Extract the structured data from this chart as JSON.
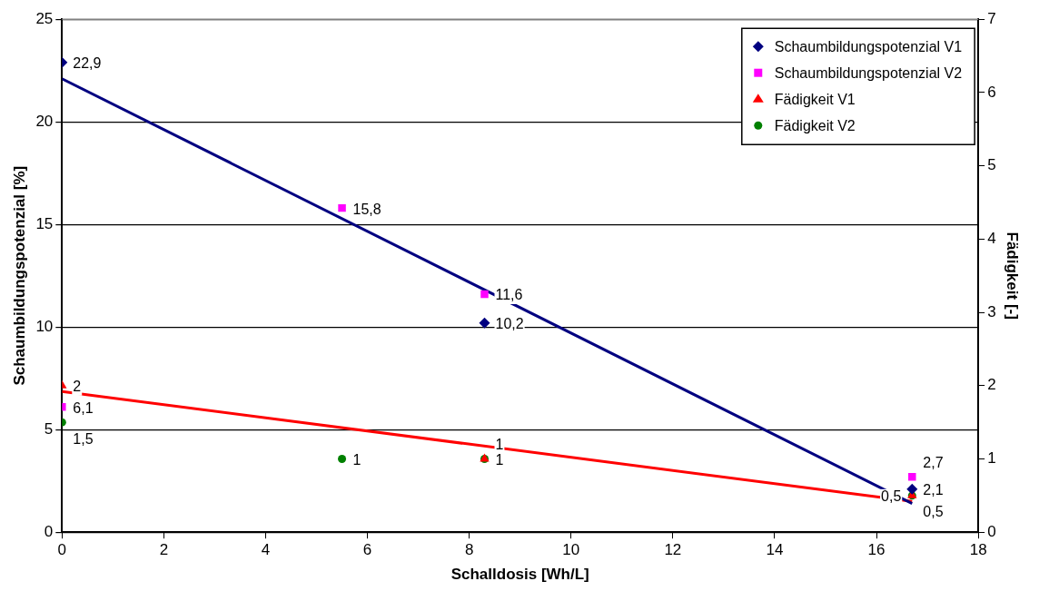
{
  "chart_data": {
    "type": "scatter",
    "xlabel": "Schalldosis [Wh/L]",
    "ylabel": "Schaumbildungspotenzial [%]",
    "y2label": "Fädigkeit [-]",
    "xlim": [
      0,
      18
    ],
    "xticks": [
      0,
      2,
      4,
      6,
      8,
      10,
      12,
      14,
      16,
      18
    ],
    "ylim": [
      0,
      25
    ],
    "yticks": [
      0,
      5,
      10,
      15,
      20,
      25
    ],
    "y2lim": [
      0,
      7
    ],
    "y2ticks": [
      0,
      1,
      2,
      3,
      4,
      5,
      6,
      7
    ],
    "grid": "y",
    "legend": "top right",
    "series": [
      {
        "name": "Schaumbildungspotenzial V1",
        "color": "#000080",
        "marker": "diamond",
        "x": [
          0,
          8.3,
          16.7
        ],
        "values": [
          22.9,
          10.2,
          2.1
        ],
        "value_labels": [
          "22,9",
          "10,2",
          "2,1"
        ]
      },
      {
        "name": "Schaumbildungspotenzial V2",
        "color": "#ff00ff",
        "marker": "square",
        "x": [
          0,
          5.5,
          8.3,
          16.7
        ],
        "values": [
          6.1,
          15.8,
          11.6,
          2.7
        ],
        "value_labels": [
          "6,1",
          "15,8",
          "11,6",
          "2,7"
        ]
      },
      {
        "name": "Fädigkeit V1",
        "color": "#ff0000",
        "marker": "triangle",
        "axis": "y2",
        "x": [
          0,
          8.3,
          16.7
        ],
        "values": [
          2,
          1,
          0.5
        ],
        "value_labels": [
          "2",
          "1",
          "0,5"
        ]
      },
      {
        "name": "Fädigkeit V2",
        "color": "#008000",
        "marker": "circle",
        "axis": "y2",
        "x": [
          0,
          5.5,
          8.3,
          16.7
        ],
        "values": [
          1.5,
          1,
          1,
          0.5
        ],
        "value_labels": [
          "1,5",
          "1",
          "1",
          "0,5"
        ]
      },
      {
        "type": "line",
        "color": "#000080",
        "marker": "none",
        "x": [
          0,
          16.7
        ],
        "values": [
          22.1,
          1.4
        ]
      },
      {
        "type": "line",
        "color": "#ff0000",
        "marker": "none",
        "axis": "y2",
        "x": [
          0,
          16.7
        ],
        "values": [
          1.92,
          0.42
        ]
      }
    ]
  }
}
